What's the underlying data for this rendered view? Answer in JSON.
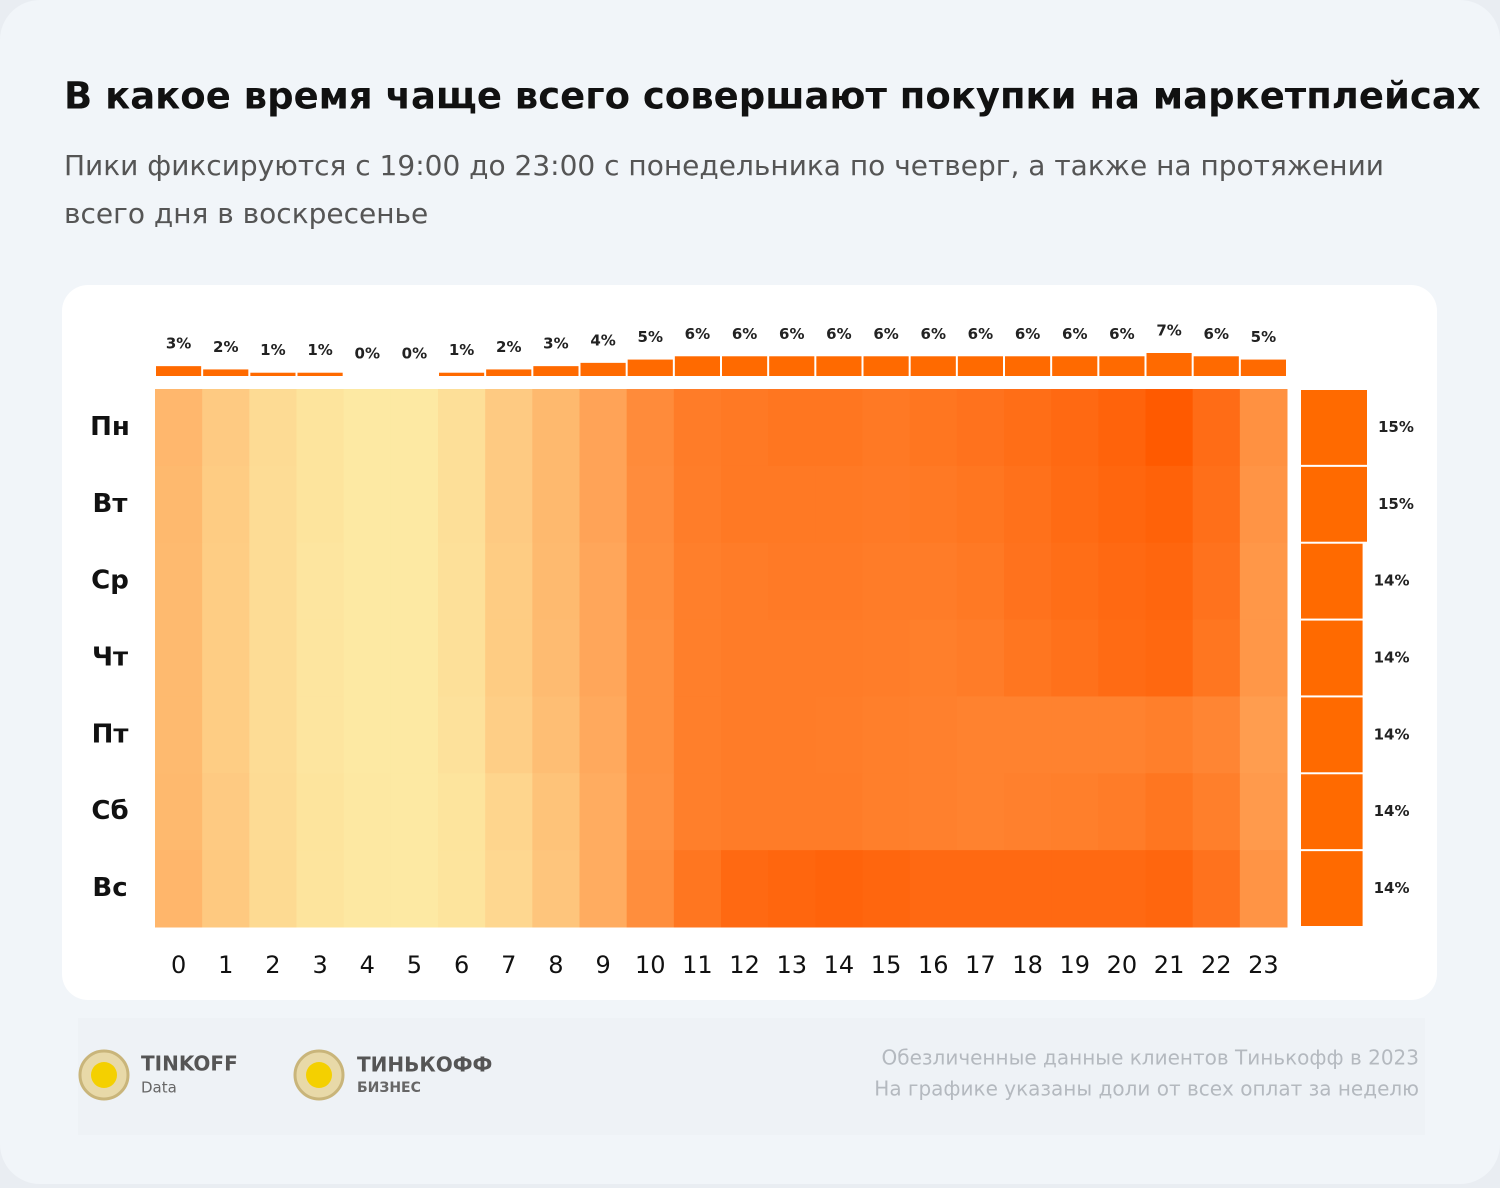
{
  "header": {
    "title": "В какое время чаще всего совершают покупки на маркетплейсах",
    "subtitle_lines": [
      "Пики фиксируются с 19:00 до 23:00 с понедельника по четверг, а также на протяжении",
      "всего дня в воскресенье"
    ]
  },
  "chart_data": {
    "type": "heatmap",
    "categories": [
      "0",
      "1",
      "2",
      "3",
      "4",
      "5",
      "6",
      "7",
      "8",
      "9",
      "10",
      "11",
      "12",
      "13",
      "14",
      "15",
      "16",
      "17",
      "18",
      "19",
      "20",
      "21",
      "22",
      "23"
    ],
    "rows": [
      "Пн",
      "Вт",
      "Ср",
      "Чт",
      "Пт",
      "Сб",
      "Вс"
    ],
    "values": [
      [
        0.45,
        0.3,
        0.17,
        0.1,
        0.06,
        0.06,
        0.14,
        0.3,
        0.44,
        0.6,
        0.76,
        0.86,
        0.88,
        0.9,
        0.9,
        0.88,
        0.9,
        0.92,
        0.95,
        0.98,
        1.02,
        1.08,
        0.96,
        0.72
      ],
      [
        0.44,
        0.29,
        0.16,
        0.1,
        0.06,
        0.06,
        0.14,
        0.3,
        0.44,
        0.6,
        0.75,
        0.85,
        0.88,
        0.88,
        0.88,
        0.87,
        0.88,
        0.9,
        0.93,
        0.97,
        1.0,
        1.03,
        0.94,
        0.7
      ],
      [
        0.43,
        0.28,
        0.16,
        0.09,
        0.06,
        0.06,
        0.13,
        0.29,
        0.43,
        0.58,
        0.74,
        0.84,
        0.86,
        0.87,
        0.87,
        0.86,
        0.86,
        0.88,
        0.92,
        0.95,
        0.98,
        1.0,
        0.92,
        0.68
      ],
      [
        0.43,
        0.28,
        0.16,
        0.09,
        0.06,
        0.06,
        0.13,
        0.29,
        0.42,
        0.58,
        0.73,
        0.84,
        0.86,
        0.86,
        0.86,
        0.85,
        0.84,
        0.86,
        0.9,
        0.93,
        0.97,
        0.99,
        0.9,
        0.68
      ],
      [
        0.43,
        0.28,
        0.16,
        0.09,
        0.06,
        0.06,
        0.12,
        0.27,
        0.4,
        0.56,
        0.73,
        0.84,
        0.86,
        0.86,
        0.85,
        0.84,
        0.83,
        0.82,
        0.82,
        0.82,
        0.82,
        0.84,
        0.8,
        0.64
      ],
      [
        0.44,
        0.3,
        0.17,
        0.1,
        0.07,
        0.06,
        0.1,
        0.22,
        0.36,
        0.54,
        0.72,
        0.84,
        0.86,
        0.86,
        0.86,
        0.84,
        0.83,
        0.82,
        0.83,
        0.84,
        0.86,
        0.9,
        0.84,
        0.66
      ],
      [
        0.46,
        0.31,
        0.18,
        0.1,
        0.07,
        0.06,
        0.1,
        0.2,
        0.34,
        0.54,
        0.74,
        0.9,
        0.98,
        1.0,
        1.02,
        1.0,
        0.98,
        0.98,
        0.98,
        0.98,
        0.98,
        1.0,
        0.92,
        0.7
      ]
    ],
    "color_scale": [
      "#fde9a3",
      "#ffa85c",
      "#ff5a00"
    ],
    "column_totals": {
      "values": [
        3,
        2,
        1,
        1,
        0,
        0,
        1,
        2,
        3,
        4,
        5,
        6,
        6,
        6,
        6,
        6,
        6,
        6,
        6,
        6,
        6,
        7,
        6,
        5
      ],
      "value_labels": [
        "3%",
        "2%",
        "1%",
        "1%",
        "0%",
        "0%",
        "1%",
        "2%",
        "3%",
        "4%",
        "5%",
        "6%",
        "6%",
        "6%",
        "6%",
        "6%",
        "6%",
        "6%",
        "6%",
        "6%",
        "6%",
        "7%",
        "6%",
        "5%"
      ],
      "ylim": [
        0,
        7
      ],
      "color": "#ff6a00"
    },
    "row_totals": {
      "values": [
        15,
        15,
        14,
        14,
        14,
        14,
        14
      ],
      "value_labels": [
        "15%",
        "15%",
        "14%",
        "14%",
        "14%",
        "14%",
        "14%"
      ],
      "xlim": [
        0,
        15
      ],
      "color": "#ff6a00"
    }
  },
  "footer": {
    "logo1_name": "TINKOFF",
    "logo1_sub": "Data",
    "logo2_name": "ТИНЬКОФФ",
    "logo2_sub": "БИЗНЕС",
    "notes": [
      "Обезличенные данные клиентов Тинькофф в 2023",
      "На графике указаны доли от всех оплат за неделю"
    ]
  }
}
